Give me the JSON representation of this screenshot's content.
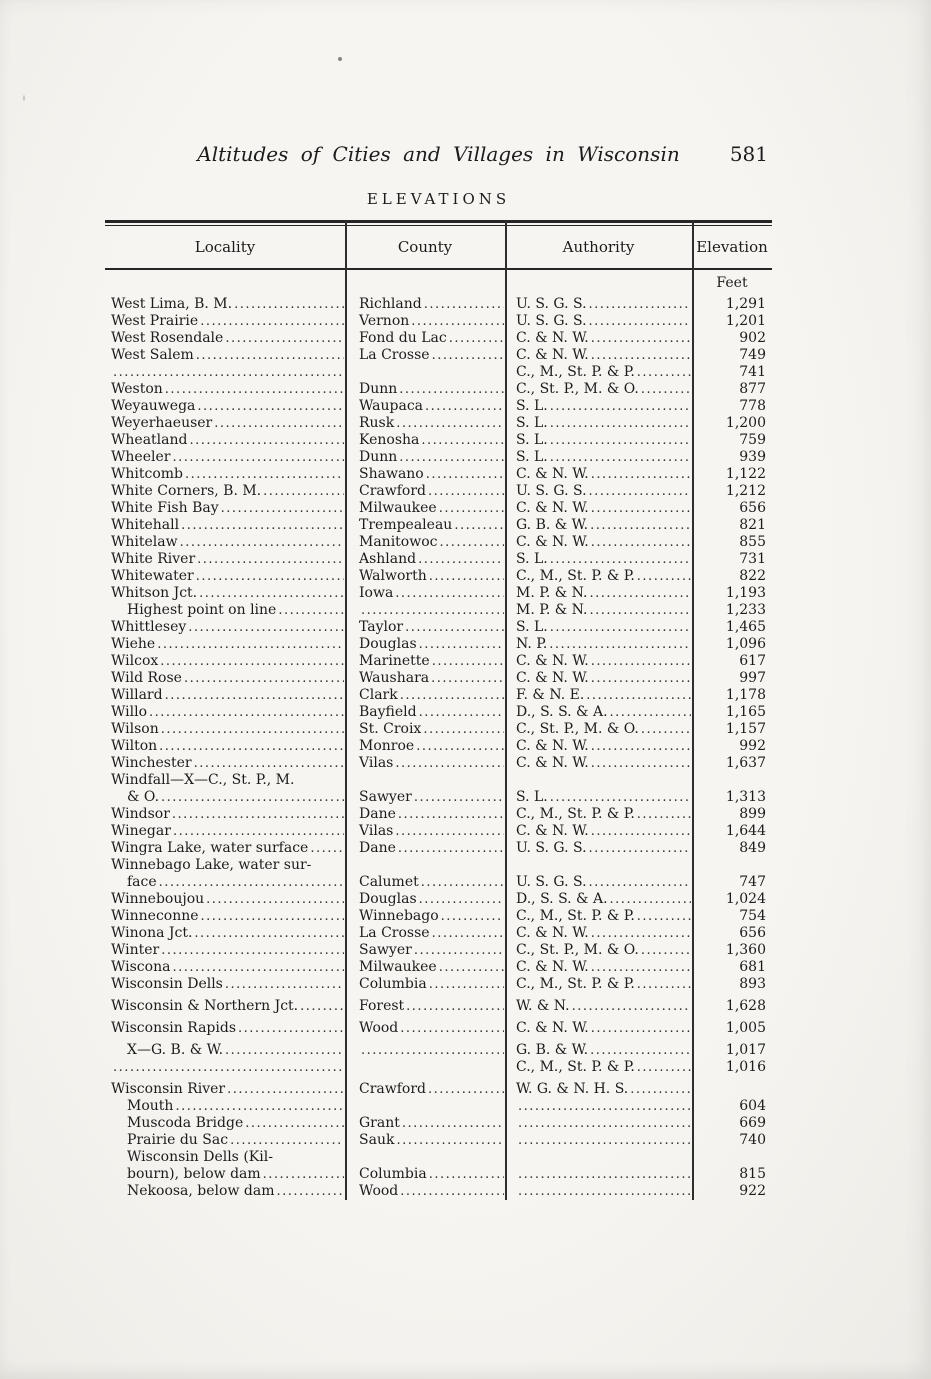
{
  "page": {
    "title": "Altitudes of Cities and Villages in Wisconsin",
    "page_number": "581",
    "table_heading": "ELEVATIONS",
    "unit_label": "Feet"
  },
  "table": {
    "columns": [
      "Locality",
      "County",
      "Authority",
      "Elevation"
    ],
    "rows": [
      {
        "l": "West Lima, B. M.",
        "c": "Richland",
        "a": "U. S. G. S.",
        "e": "1,291"
      },
      {
        "l": "West Prairie",
        "c": "Vernon",
        "a": "U. S. G. S.",
        "e": "1,201"
      },
      {
        "l": "West Rosendale",
        "c": "Fond du Lac",
        "a": "C. & N. W.",
        "e": "902"
      },
      {
        "l": "West Salem",
        "c": "La Crosse",
        "a": "C. & N. W.",
        "e": "749"
      },
      {
        "l": "",
        "c": "",
        "a": "C., M., St. P. & P.",
        "e": "741"
      },
      {
        "l": "Weston",
        "c": "Dunn",
        "a": "C., St. P., M. & O.",
        "e": "877"
      },
      {
        "l": "Weyauwega",
        "c": "Waupaca",
        "a": "S. L.",
        "e": "778"
      },
      {
        "l": "Weyerhaeuser",
        "c": "Rusk",
        "a": "S. L.",
        "e": "1,200"
      },
      {
        "l": "Wheatland",
        "c": "Kenosha",
        "a": "S. L.",
        "e": "759"
      },
      {
        "l": "Wheeler",
        "c": "Dunn",
        "a": "S. L.",
        "e": "939"
      },
      {
        "l": "Whitcomb",
        "c": "Shawano",
        "a": "C. & N. W.",
        "e": "1,122"
      },
      {
        "l": "White Corners, B. M.",
        "c": "Crawford",
        "a": "U. S. G. S.",
        "e": "1,212"
      },
      {
        "l": "White Fish Bay",
        "c": "Milwaukee",
        "a": "C. & N. W.",
        "e": "656"
      },
      {
        "l": "Whitehall",
        "c": "Trempealeau",
        "a": "G. B. & W.",
        "e": "821"
      },
      {
        "l": "Whitelaw",
        "c": "Manitowoc",
        "a": "C. & N. W.",
        "e": "855"
      },
      {
        "l": "White River",
        "c": "Ashland",
        "a": "S. L.",
        "e": "731"
      },
      {
        "l": "Whitewater",
        "c": "Walworth",
        "a": "C., M., St. P. & P.",
        "e": "822"
      },
      {
        "l": "Whitson Jct.",
        "c": "Iowa",
        "a": "M. P. & N.",
        "e": "1,193"
      },
      {
        "l": "Highest point on line",
        "ind": 1,
        "c": "",
        "cl": true,
        "a": "M. P. & N.",
        "e": "1,233"
      },
      {
        "l": "Whittlesey",
        "c": "Taylor",
        "a": "S. L.",
        "e": "1,465"
      },
      {
        "l": "Wiehe",
        "c": "Douglas",
        "a": "N. P.",
        "e": "1,096"
      },
      {
        "l": "Wilcox",
        "c": "Marinette",
        "a": "C. & N. W.",
        "e": "617"
      },
      {
        "l": "Wild Rose",
        "c": "Waushara",
        "a": "C. & N. W.",
        "e": "997"
      },
      {
        "l": "Willard",
        "c": "Clark",
        "a": "F. & N. E.",
        "e": "1,178"
      },
      {
        "l": "Willo",
        "c": "Bayfield",
        "a": "D., S. S. & A.",
        "e": "1,165"
      },
      {
        "l": "Wilson",
        "c": "St. Croix",
        "a": "C., St. P., M. & O.",
        "e": "1,157"
      },
      {
        "l": "Wilton",
        "c": "Monroe",
        "a": "C. & N. W.",
        "e": "992"
      },
      {
        "l": "Winchester",
        "c": "Vilas",
        "a": "C. & N. W.",
        "e": "1,637"
      },
      {
        "l": "Windfall—X—C., St. P., M.",
        "nl": true,
        "c": "",
        "a": "",
        "e": ""
      },
      {
        "l": "& O.",
        "ind": 1,
        "c": "Sawyer",
        "a": "S. L.",
        "e": "1,313"
      },
      {
        "l": "Windsor",
        "c": "Dane",
        "a": "C., M., St. P. & P.",
        "e": "899"
      },
      {
        "l": "Winegar",
        "c": "Vilas",
        "a": "C. & N. W.",
        "e": "1,644"
      },
      {
        "l": "Wingra Lake, water surface",
        "c": "Dane",
        "a": "U. S. G. S.",
        "e": "849"
      },
      {
        "l": "Winnebago Lake, water sur-",
        "nl": true,
        "c": "",
        "a": "",
        "e": ""
      },
      {
        "l": "face",
        "ind": 1,
        "c": "Calumet",
        "a": "U. S. G. S.",
        "e": "747"
      },
      {
        "l": "Winneboujou",
        "c": "Douglas",
        "a": "D., S. S. & A.",
        "e": "1,024"
      },
      {
        "l": "Winneconne",
        "c": "Winnebago",
        "a": "C., M., St. P. & P.",
        "e": "754"
      },
      {
        "l": "Winona Jct.",
        "c": "La Crosse",
        "a": "C. & N. W.",
        "e": "656"
      },
      {
        "l": "Winter",
        "c": "Sawyer",
        "a": "C., St. P., M. & O.",
        "e": "1,360"
      },
      {
        "l": "Wiscona",
        "c": "Milwaukee",
        "a": "C. & N. W.",
        "e": "681"
      },
      {
        "l": "Wisconsin Dells",
        "c": "Columbia",
        "a": "C., M., St. P. & P.",
        "e": "893"
      },
      {
        "l": "Wisconsin & Northern Jct.",
        "g": true,
        "c": "Forest",
        "a": "W. & N.",
        "e": "1,628"
      },
      {
        "l": "Wisconsin Rapids",
        "g": true,
        "c": "Wood",
        "a": "C. & N. W.",
        "e": "1,005"
      },
      {
        "l": "X—G. B. & W.",
        "ind": 1,
        "g": true,
        "c": "",
        "cl": true,
        "a": "G. B. & W.",
        "e": "1,017"
      },
      {
        "l": "",
        "c": "",
        "a": "C., M., St. P. & P.",
        "e": "1,016"
      },
      {
        "l": "Wisconsin River",
        "g": true,
        "c": "Crawford",
        "a": "W. G. & N. H. S.",
        "e": ""
      },
      {
        "l": "Mouth",
        "ind": 1,
        "c": "",
        "a": "",
        "al": true,
        "e": "604"
      },
      {
        "l": "Muscoda Bridge",
        "ind": 1,
        "c": "Grant",
        "a": "",
        "al": true,
        "e": "669"
      },
      {
        "l": "Prairie du Sac",
        "ind": 1,
        "c": "Sauk",
        "a": "",
        "al": true,
        "e": "740"
      },
      {
        "l": "Wisconsin Dells (Kil-",
        "ind": 1,
        "nl": true,
        "c": "",
        "a": "",
        "e": ""
      },
      {
        "l": "bourn), below dam",
        "ind": 1,
        "c": "Columbia",
        "a": "",
        "al": true,
        "e": "815"
      },
      {
        "l": "Nekoosa, below dam",
        "ind": 1,
        "c": "Wood",
        "a": "",
        "al": true,
        "e": "922"
      }
    ]
  }
}
